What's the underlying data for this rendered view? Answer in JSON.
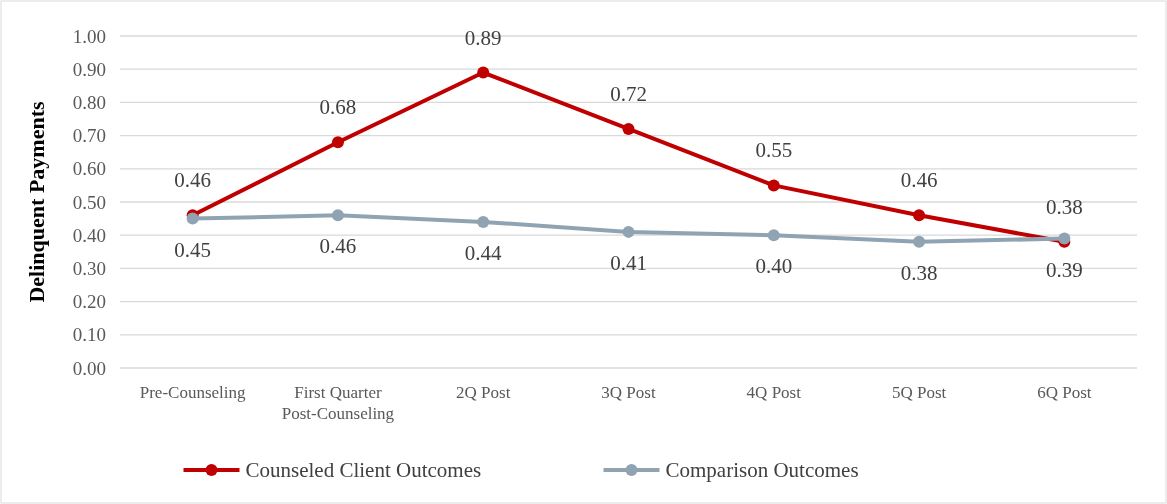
{
  "chart_data": {
    "type": "line",
    "ylabel": "Delinquent Payments",
    "categories": [
      "Pre-Counseling",
      "First Quarter\nPost-Counseling",
      "2Q Post",
      "3Q Post",
      "4Q Post",
      "5Q Post",
      "6Q Post"
    ],
    "series": [
      {
        "name": "Counseled Client Outcomes",
        "color": "#c00000",
        "values": [
          0.46,
          0.68,
          0.89,
          0.72,
          0.55,
          0.46,
          0.38
        ],
        "value_labels": [
          "0.46",
          "0.68",
          "0.89",
          "0.72",
          "0.55",
          "0.46",
          "0.38"
        ]
      },
      {
        "name": "Comparison Outcomes",
        "color": "#8fa3b3",
        "values": [
          0.45,
          0.46,
          0.44,
          0.41,
          0.4,
          0.38,
          0.39
        ],
        "value_labels": [
          "0.45",
          "0.46",
          "0.44",
          "0.41",
          "0.40",
          "0.38",
          "0.39"
        ]
      }
    ],
    "ylim": [
      0,
      1
    ],
    "yticks": [
      "0.00",
      "0.10",
      "0.20",
      "0.30",
      "0.40",
      "0.50",
      "0.60",
      "0.70",
      "0.80",
      "0.90",
      "1.00"
    ],
    "grid": "y",
    "legend": "bottom",
    "marker": "circle",
    "line_style": "solid"
  }
}
